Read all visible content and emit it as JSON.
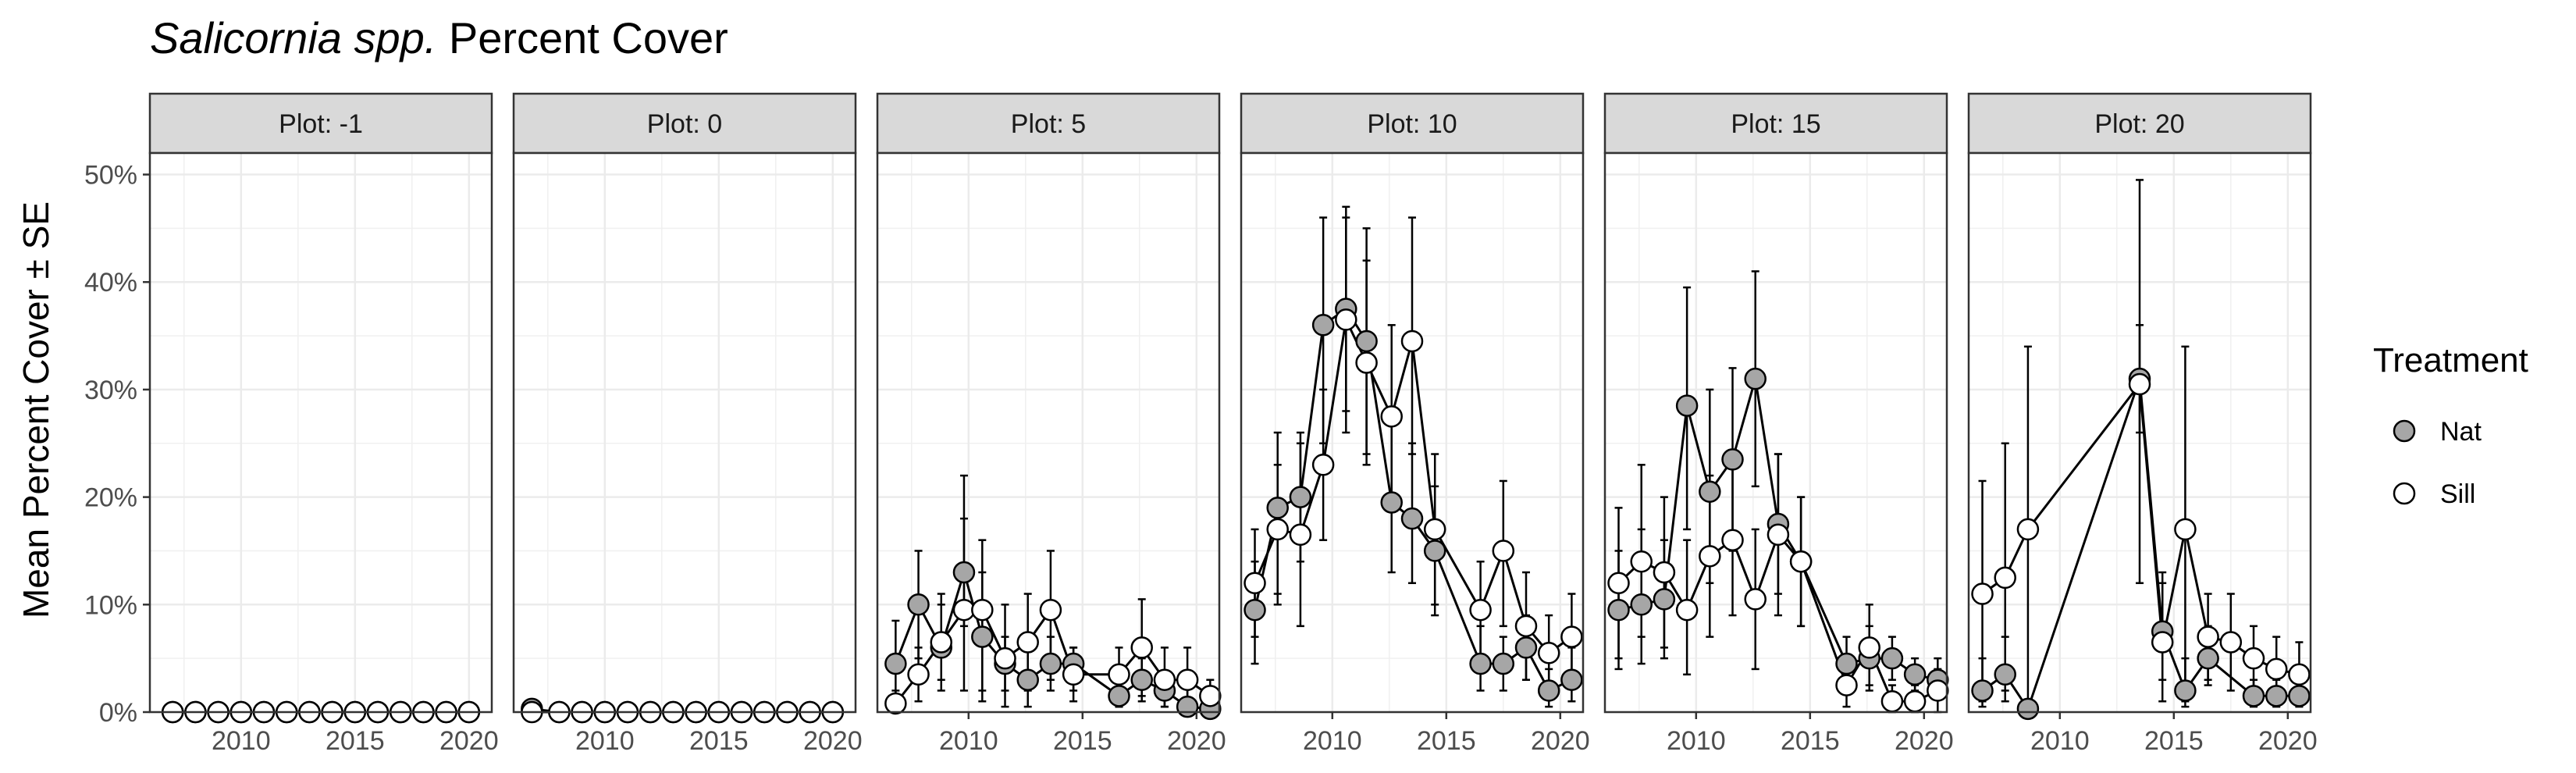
{
  "chart_data": {
    "type": "scatter",
    "title_italic": "Salicornia spp.",
    "title_rest": " Percent Cover",
    "ylabel": "Mean Percent Cover ± SE",
    "xlim": [
      2006,
      2021
    ],
    "ylim": [
      0,
      52
    ],
    "xticks": [
      2010,
      2015,
      2020
    ],
    "xtick_labels": [
      "2010",
      "2015",
      "2020"
    ],
    "yticks": [
      0,
      10,
      20,
      30,
      40,
      50
    ],
    "ytick_labels": [
      "0%",
      "10%",
      "20%",
      "30%",
      "40%",
      "50%"
    ],
    "grid": true,
    "legend": {
      "title": "Treatment",
      "placement": "right",
      "entries": [
        {
          "label": "Nat",
          "color": "#a6a6a6"
        },
        {
          "label": "Sill",
          "color": "#ffffff"
        }
      ]
    },
    "panels": [
      {
        "label": "Plot: -1",
        "series": [
          {
            "name": "Nat",
            "x": [
              2007.0,
              2008.0,
              2009.0,
              2010.0,
              2011.0,
              2012.0,
              2013.0,
              2014.0,
              2015.0,
              2016.0,
              2017.0,
              2018.0,
              2019.0,
              2020.0
            ],
            "y": [
              0,
              0,
              0,
              0,
              0,
              0,
              0,
              0,
              0,
              0,
              0,
              0,
              0,
              0
            ],
            "lo": [
              0,
              0,
              0,
              0,
              0,
              0,
              0,
              0,
              0,
              0,
              0,
              0,
              0,
              0
            ],
            "hi": [
              0,
              0,
              0,
              0,
              0,
              0,
              0,
              0,
              0,
              0,
              0,
              0,
              0,
              0
            ]
          },
          {
            "name": "Sill",
            "x": [
              2007.0,
              2008.0,
              2009.0,
              2010.0,
              2011.0,
              2012.0,
              2013.0,
              2014.0,
              2015.0,
              2016.0,
              2017.0,
              2018.0,
              2019.0,
              2020.0
            ],
            "y": [
              0,
              0,
              0,
              0,
              0,
              0,
              0,
              0,
              0,
              0,
              0,
              0,
              0,
              0
            ],
            "lo": [
              0,
              0,
              0,
              0,
              0,
              0,
              0,
              0,
              0,
              0,
              0,
              0,
              0,
              0
            ],
            "hi": [
              0,
              0,
              0,
              0,
              0,
              0,
              0,
              0,
              0,
              0,
              0,
              0,
              0,
              0
            ]
          }
        ]
      },
      {
        "label": "Plot: 0",
        "series": [
          {
            "name": "Nat",
            "x": [
              2006.8,
              2008.0,
              2009.0,
              2010.0,
              2011.0,
              2012.0,
              2013.0,
              2014.0,
              2015.0,
              2016.0,
              2017.0,
              2018.0,
              2019.0,
              2020.0
            ],
            "y": [
              0.3,
              0,
              0,
              0,
              0,
              0,
              0,
              0,
              0,
              0,
              0,
              0,
              0,
              0
            ],
            "lo": [
              0.3,
              0,
              0,
              0,
              0,
              0,
              0,
              0,
              0,
              0,
              0,
              0,
              0,
              0
            ],
            "hi": [
              0.3,
              0,
              0,
              0,
              0,
              0,
              0,
              0,
              0,
              0,
              0,
              0,
              0,
              0
            ]
          },
          {
            "name": "Sill",
            "x": [
              2006.8,
              2008.0,
              2009.0,
              2010.0,
              2011.0,
              2012.0,
              2013.0,
              2014.0,
              2015.0,
              2016.0,
              2017.0,
              2018.0,
              2019.0,
              2020.0
            ],
            "y": [
              0,
              0,
              0,
              0,
              0,
              0,
              0,
              0,
              0,
              0,
              0,
              0,
              0,
              0
            ],
            "lo": [
              0,
              0,
              0,
              0,
              0,
              0,
              0,
              0,
              0,
              0,
              0,
              0,
              0,
              0
            ],
            "hi": [
              0,
              0,
              0,
              0,
              0,
              0,
              0,
              0,
              0,
              0,
              0,
              0,
              0,
              0
            ]
          }
        ]
      },
      {
        "label": "Plot: 5",
        "series": [
          {
            "name": "Nat",
            "x": [
              2006.8,
              2007.8,
              2008.8,
              2009.8,
              2010.6,
              2011.6,
              2012.6,
              2013.6,
              2014.6,
              2016.6,
              2017.6,
              2018.6,
              2019.6,
              2020.6
            ],
            "y": [
              4.5,
              10,
              6,
              13,
              7,
              4.5,
              3,
              4.5,
              4.5,
              1.5,
              3,
              2,
              0.5,
              0.3
            ],
            "lo": [
              1.5,
              5,
              3,
              8,
              2,
              2,
              0.5,
              2,
              2,
              0.5,
              1,
              0.5,
              0,
              0
            ],
            "hi": [
              8.5,
              15,
              10,
              22,
              13,
              7,
              6,
              7,
              6,
              3,
              5,
              3.5,
              2.5,
              1
            ]
          },
          {
            "name": "Sill",
            "x": [
              2006.8,
              2007.8,
              2008.8,
              2009.8,
              2010.6,
              2011.6,
              2012.6,
              2013.6,
              2014.6,
              2016.6,
              2017.6,
              2018.6,
              2019.6,
              2020.6
            ],
            "y": [
              0.8,
              3.5,
              6.5,
              9.5,
              9.5,
              5,
              6.5,
              9.5,
              3.5,
              3.5,
              6,
              3,
              3,
              1.5
            ],
            "lo": [
              0,
              1,
              2,
              2,
              1,
              0.5,
              2,
              3,
              1,
              0.5,
              1.5,
              0.5,
              0.5,
              0
            ],
            "hi": [
              2,
              6,
              11,
              18,
              16,
              10,
              11,
              15,
              6,
              6,
              10.5,
              6,
              6,
              3
            ]
          }
        ]
      },
      {
        "label": "Plot: 10",
        "series": [
          {
            "name": "Nat",
            "x": [
              2006.6,
              2007.6,
              2008.6,
              2009.6,
              2010.6,
              2011.5,
              2012.6,
              2013.5,
              2014.5,
              2016.5,
              2017.5,
              2018.5,
              2019.5,
              2020.5
            ],
            "y": [
              9.5,
              19,
              20,
              36,
              37.5,
              34.5,
              19.5,
              18,
              15,
              4.5,
              4.5,
              6,
              2,
              3
            ],
            "lo": [
              4.5,
              10,
              14,
              25,
              28,
              24,
              13,
              12,
              9,
              2,
              2,
              3,
              0.5,
              1
            ],
            "hi": [
              14,
              26,
              26,
              46,
              47,
              45,
              27,
              25,
              21,
              8,
              7,
              9,
              4,
              6
            ]
          },
          {
            "name": "Sill",
            "x": [
              2006.6,
              2007.6,
              2008.6,
              2009.6,
              2010.6,
              2011.5,
              2012.6,
              2013.5,
              2014.5,
              2016.5,
              2017.5,
              2018.5,
              2019.5,
              2020.5
            ],
            "y": [
              12,
              17,
              16.5,
              23,
              36.5,
              32.5,
              27.5,
              34.5,
              17,
              9.5,
              15,
              8,
              5.5,
              7
            ],
            "lo": [
              7,
              11,
              8,
              16,
              26,
              23,
              19,
              24,
              10,
              5,
              8,
              3,
              2,
              3
            ],
            "hi": [
              17,
              23,
              25,
              30,
              46,
              42,
              36,
              46,
              24,
              14,
              21.5,
              13,
              9,
              11
            ]
          }
        ]
      },
      {
        "label": "Plot: 15",
        "series": [
          {
            "name": "Nat",
            "x": [
              2006.6,
              2007.6,
              2008.6,
              2009.6,
              2010.6,
              2011.6,
              2012.6,
              2013.6,
              2014.6,
              2016.6,
              2017.6,
              2018.6,
              2019.6,
              2020.6
            ],
            "y": [
              9.5,
              10,
              10.5,
              28.5,
              20.5,
              23.5,
              31,
              17.5,
              14,
              4.5,
              5,
              5,
              3.5,
              3
            ],
            "lo": [
              4,
              4.5,
              5,
              17,
              12,
              15,
              21,
              11,
              8,
              2.5,
              2.5,
              3,
              2,
              1.5
            ],
            "hi": [
              15,
              17,
              16,
              39.5,
              30,
              32,
              41,
              24,
              20,
              7,
              8,
              7,
              5,
              5
            ]
          },
          {
            "name": "Sill",
            "x": [
              2006.6,
              2007.6,
              2008.6,
              2009.6,
              2010.6,
              2011.6,
              2012.6,
              2013.6,
              2014.6,
              2016.6,
              2017.6,
              2018.6,
              2019.6,
              2020.6
            ],
            "y": [
              12,
              14,
              13,
              9.5,
              14.5,
              16,
              10.5,
              16.5,
              14,
              2.5,
              6,
              1,
              1,
              2
            ],
            "lo": [
              5,
              7,
              6,
              3.5,
              7,
              9,
              4,
              9,
              8,
              0.5,
              2,
              0,
              0,
              0
            ],
            "hi": [
              19,
              23,
              20,
              16,
              22,
              23,
              17,
              24,
              20,
              5,
              10,
              2.5,
              2.5,
              4
            ]
          }
        ]
      },
      {
        "label": "Plot: 20",
        "series": [
          {
            "name": "Nat",
            "x": [
              2006.6,
              2007.6,
              2008.6,
              2013.5,
              2014.5,
              2015.5,
              2016.5,
              2018.5,
              2019.5,
              2020.5
            ],
            "y": [
              2,
              3.5,
              0.3,
              31,
              7.5,
              2,
              5,
              1.5,
              1.5,
              1.5
            ],
            "lo": [
              0.5,
              1,
              0,
              26,
              3,
              0.5,
              2.5,
              0.5,
              0.5,
              0.5
            ],
            "hi": [
              5,
              7,
              0.8,
              36,
              13,
              5,
              8,
              3,
              3,
              3
            ]
          },
          {
            "name": "Sill",
            "x": [
              2006.6,
              2007.6,
              2008.6,
              2013.5,
              2014.5,
              2015.5,
              2016.5,
              2017.5,
              2018.5,
              2019.5,
              2020.5
            ],
            "y": [
              11,
              12.5,
              17,
              30.5,
              6.5,
              17,
              7,
              6.5,
              5,
              4,
              3.5
            ],
            "lo": [
              1,
              2,
              0,
              12,
              1,
              1,
              3,
              2,
              2,
              1,
              1
            ],
            "hi": [
              21.5,
              25,
              34,
              49.5,
              12,
              34,
              11,
              11,
              8,
              7,
              6.5
            ]
          }
        ]
      }
    ]
  }
}
